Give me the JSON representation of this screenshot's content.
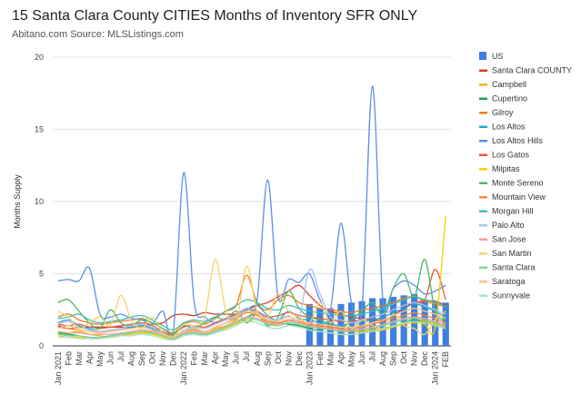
{
  "chart_data": {
    "type": "line",
    "title": "15 Santa Clara County CITIES Months of Inventory SFR ONLY",
    "subtitle": "Abitano.com Source: MLSListings.com",
    "ylabel": "Months Supply",
    "xlabel": "",
    "ylim": [
      0,
      20
    ],
    "yticks": [
      0,
      5,
      10,
      15,
      20
    ],
    "x": [
      "Jan 2021",
      "Feb",
      "Mar",
      "Apr",
      "May",
      "Jun",
      "Jul",
      "Aug",
      "Sep",
      "Oct",
      "Nov",
      "Dec",
      "Jan 2022",
      "Feb",
      "Mar",
      "Apr",
      "May",
      "Jun",
      "Jul",
      "Aug",
      "Sep",
      "Oct",
      "Nov",
      "Dec",
      "Jan 2023",
      "Feb",
      "Mar",
      "Apr",
      "May",
      "Jun",
      "Jul",
      "Aug",
      "Sep",
      "Oct",
      "Nov",
      "Dec",
      "Jan 2024",
      "FEB"
    ],
    "bar_series": {
      "name": "US",
      "color": "#3f7fe0",
      "values": [
        null,
        null,
        null,
        null,
        null,
        null,
        null,
        null,
        null,
        null,
        null,
        null,
        null,
        null,
        null,
        null,
        null,
        null,
        null,
        null,
        null,
        null,
        null,
        null,
        2.9,
        2.6,
        2.6,
        2.9,
        3.0,
        3.1,
        3.3,
        3.3,
        3.4,
        3.5,
        3.6,
        3.2,
        3.0,
        3.0
      ]
    },
    "series": [
      {
        "name": "Santa Clara COUNTY",
        "color": "#d93a2b",
        "values": [
          1.4,
          1.2,
          1.3,
          1.3,
          1.3,
          1.3,
          1.3,
          1.3,
          1.4,
          1.5,
          1.6,
          2.1,
          2.2,
          2.1,
          2.3,
          2.2,
          2.2,
          2.2,
          2.5,
          2.8,
          3.0,
          3.4,
          3.8,
          4.2,
          3.5,
          2.8,
          2.4,
          2.2,
          2.0,
          1.9,
          1.8,
          1.8,
          2.1,
          2.6,
          3.0,
          3.1,
          3.1,
          2.8
        ]
      },
      {
        "name": "Campbell",
        "color": "#f2b600",
        "values": [
          1.0,
          0.9,
          1.0,
          0.8,
          0.7,
          0.6,
          0.7,
          0.8,
          0.9,
          1.0,
          0.9,
          0.7,
          1.0,
          0.9,
          0.8,
          1.2,
          1.4,
          1.8,
          2.5,
          2.2,
          1.6,
          1.5,
          1.8,
          1.6,
          1.4,
          1.3,
          1.2,
          1.1,
          1.0,
          1.0,
          1.1,
          1.2,
          1.4,
          1.6,
          1.8,
          1.7,
          1.5,
          1.3
        ]
      },
      {
        "name": "Cupertino",
        "color": "#1aa35a",
        "values": [
          0.9,
          0.8,
          0.7,
          0.6,
          0.6,
          0.7,
          0.8,
          0.9,
          1.0,
          0.9,
          0.7,
          0.5,
          0.8,
          0.9,
          0.8,
          1.0,
          1.3,
          1.6,
          2.0,
          2.2,
          1.8,
          1.6,
          1.5,
          1.4,
          1.2,
          1.0,
          0.9,
          0.8,
          0.8,
          0.9,
          1.0,
          1.2,
          1.4,
          1.6,
          1.8,
          1.6,
          1.4,
          1.2
        ]
      },
      {
        "name": "Gilroy",
        "color": "#f07d1a",
        "values": [
          2.0,
          2.2,
          1.8,
          1.6,
          1.5,
          1.6,
          1.7,
          1.8,
          1.9,
          1.6,
          1.2,
          0.9,
          1.5,
          1.7,
          1.5,
          1.9,
          2.4,
          2.8,
          4.9,
          3.0,
          2.5,
          3.2,
          3.5,
          3.0,
          2.8,
          2.6,
          2.5,
          2.4,
          2.3,
          2.5,
          2.6,
          2.8,
          3.0,
          3.3,
          3.4,
          3.1,
          2.9,
          2.7
        ]
      },
      {
        "name": "Los Altos",
        "color": "#26a6c9",
        "values": [
          1.6,
          1.8,
          1.4,
          1.2,
          1.0,
          1.1,
          1.2,
          1.3,
          1.4,
          1.2,
          0.8,
          0.5,
          1.0,
          1.2,
          1.0,
          1.3,
          1.6,
          1.9,
          2.5,
          2.8,
          2.1,
          1.8,
          2.4,
          1.9,
          1.8,
          1.6,
          1.5,
          1.4,
          1.6,
          1.7,
          1.8,
          2.0,
          2.3,
          2.6,
          2.9,
          2.7,
          2.4,
          2.0
        ]
      },
      {
        "name": "Los Altos Hills",
        "color": "#5b8fe8",
        "values": [
          4.5,
          4.6,
          4.5,
          5.4,
          2.2,
          2.0,
          2.2,
          1.9,
          1.8,
          1.5,
          2.4,
          1.0,
          12.0,
          3.0,
          2.0,
          1.6,
          1.8,
          2.0,
          2.6,
          3.2,
          11.5,
          3.4,
          4.6,
          4.4,
          5.0,
          3.2,
          2.5,
          8.5,
          3.0,
          2.5,
          18.0,
          3.2,
          4.0,
          4.5,
          4.2,
          3.6,
          3.8,
          4.2
        ]
      },
      {
        "name": "Los Gatos",
        "color": "#e8594a",
        "values": [
          1.5,
          1.4,
          1.5,
          1.3,
          1.2,
          1.3,
          1.4,
          1.5,
          1.6,
          1.4,
          1.0,
          0.8,
          1.3,
          1.4,
          1.3,
          1.6,
          1.9,
          2.2,
          2.6,
          2.4,
          2.0,
          2.1,
          2.3,
          2.1,
          2.0,
          1.9,
          1.8,
          1.7,
          1.7,
          1.8,
          2.0,
          2.2,
          2.5,
          2.8,
          3.0,
          3.2,
          5.3,
          3.2
        ]
      },
      {
        "name": "Milpitas",
        "color": "#f5d000",
        "values": [
          0.7,
          0.6,
          0.6,
          0.5,
          0.5,
          0.6,
          0.7,
          0.8,
          0.9,
          0.8,
          0.6,
          0.4,
          0.7,
          0.8,
          0.7,
          0.9,
          1.2,
          1.5,
          1.8,
          1.6,
          1.3,
          1.2,
          1.4,
          1.3,
          1.1,
          1.0,
          0.9,
          0.8,
          0.8,
          0.9,
          1.0,
          1.1,
          1.3,
          1.5,
          1.6,
          1.5,
          1.3,
          9.0
        ]
      },
      {
        "name": "Monte Sereno",
        "color": "#4cb86b",
        "values": [
          3.0,
          3.2,
          2.4,
          1.6,
          1.2,
          2.5,
          1.6,
          1.4,
          1.8,
          1.6,
          1.2,
          0.8,
          1.4,
          1.2,
          1.6,
          2.0,
          1.8,
          2.4,
          1.6,
          2.2,
          1.4,
          2.0,
          3.8,
          2.6,
          2.0,
          1.8,
          1.5,
          1.2,
          1.8,
          2.4,
          3.0,
          2.2,
          4.0,
          5.0,
          3.4,
          6.0,
          2.4,
          1.8
        ]
      },
      {
        "name": "Mountain View",
        "color": "#f58a3a",
        "values": [
          1.3,
          1.2,
          1.1,
          1.0,
          0.9,
          1.0,
          1.1,
          1.2,
          1.3,
          1.1,
          0.8,
          0.6,
          1.0,
          1.1,
          1.0,
          1.3,
          1.6,
          1.9,
          2.3,
          2.1,
          1.7,
          1.6,
          1.8,
          1.7,
          1.5,
          1.4,
          1.3,
          1.2,
          1.2,
          1.3,
          1.5,
          1.7,
          1.9,
          2.1,
          2.3,
          2.1,
          1.9,
          1.6
        ]
      },
      {
        "name": "Morgan Hill",
        "color": "#3dbfb2",
        "values": [
          1.9,
          2.0,
          2.2,
          1.8,
          1.6,
          1.7,
          1.8,
          2.0,
          2.1,
          1.8,
          1.4,
          1.1,
          1.6,
          1.8,
          1.7,
          2.0,
          2.4,
          2.8,
          3.2,
          3.0,
          2.6,
          2.5,
          2.8,
          2.6,
          2.4,
          2.3,
          2.2,
          2.1,
          2.1,
          2.2,
          2.4,
          2.6,
          2.9,
          3.2,
          3.4,
          3.2,
          3.0,
          2.7
        ]
      },
      {
        "name": "Palo Alto",
        "color": "#a9c4ef",
        "values": [
          1.5,
          1.7,
          1.3,
          1.1,
          1.0,
          1.1,
          1.2,
          1.4,
          1.5,
          1.3,
          0.9,
          0.6,
          1.1,
          1.3,
          1.2,
          1.5,
          1.8,
          2.1,
          2.6,
          2.3,
          1.9,
          1.8,
          2.1,
          1.9,
          5.3,
          3.6,
          2.0,
          1.8,
          1.6,
          1.8,
          2.0,
          2.2,
          2.5,
          2.8,
          3.0,
          2.8,
          2.5,
          2.2
        ]
      },
      {
        "name": "San Jose",
        "color": "#f2a0a0",
        "values": [
          1.0,
          0.9,
          0.9,
          0.8,
          0.8,
          0.8,
          0.9,
          1.0,
          1.1,
          1.0,
          0.8,
          0.6,
          0.9,
          1.0,
          0.9,
          1.1,
          1.4,
          1.7,
          2.0,
          1.9,
          1.6,
          1.5,
          1.7,
          1.6,
          1.4,
          1.3,
          1.2,
          1.1,
          1.1,
          1.2,
          1.3,
          1.5,
          1.7,
          1.9,
          2.0,
          1.9,
          1.7,
          1.5
        ]
      },
      {
        "name": "San Martin",
        "color": "#f5d36b",
        "values": [
          2.4,
          2.0,
          1.2,
          1.6,
          2.0,
          1.4,
          3.5,
          1.8,
          1.2,
          2.0,
          0.9,
          0.6,
          1.5,
          1.4,
          2.0,
          6.0,
          2.5,
          1.6,
          5.5,
          2.4,
          2.0,
          3.6,
          2.4,
          2.0,
          1.6,
          3.0,
          1.6,
          2.4,
          1.2,
          1.8,
          1.4,
          1.2,
          2.2,
          1.4,
          1.2,
          0.8,
          1.8,
          2.4
        ]
      },
      {
        "name": "Santa Clara",
        "color": "#7fd494",
        "values": [
          0.8,
          0.7,
          0.7,
          0.6,
          0.6,
          0.7,
          0.8,
          0.9,
          1.0,
          0.9,
          0.7,
          0.5,
          0.8,
          0.9,
          0.8,
          1.0,
          1.3,
          1.6,
          1.9,
          1.8,
          1.5,
          1.4,
          1.6,
          1.5,
          1.3,
          1.2,
          1.1,
          1.0,
          1.0,
          1.1,
          1.2,
          1.4,
          1.6,
          1.8,
          1.9,
          1.8,
          1.6,
          1.4
        ]
      },
      {
        "name": "Saratoga",
        "color": "#f7c48a",
        "values": [
          1.2,
          1.4,
          1.1,
          1.0,
          0.9,
          1.0,
          1.1,
          1.2,
          1.3,
          1.1,
          0.8,
          0.6,
          1.0,
          1.2,
          1.0,
          1.3,
          1.6,
          2.0,
          2.4,
          2.2,
          1.8,
          1.7,
          2.0,
          1.8,
          1.6,
          1.5,
          1.4,
          1.3,
          1.3,
          1.4,
          1.6,
          1.8,
          2.1,
          2.4,
          2.6,
          2.4,
          2.2,
          1.9
        ]
      },
      {
        "name": "Sunnyvale",
        "color": "#a6e3df",
        "values": [
          0.6,
          0.6,
          0.5,
          0.5,
          0.5,
          0.6,
          0.7,
          0.7,
          0.8,
          0.7,
          0.5,
          0.4,
          0.7,
          0.8,
          0.7,
          0.9,
          1.1,
          1.4,
          1.7,
          1.6,
          1.3,
          1.2,
          1.4,
          1.3,
          1.1,
          1.0,
          0.9,
          0.8,
          0.8,
          0.9,
          1.0,
          1.2,
          1.4,
          1.6,
          1.7,
          1.6,
          1.4,
          1.2
        ]
      }
    ]
  }
}
